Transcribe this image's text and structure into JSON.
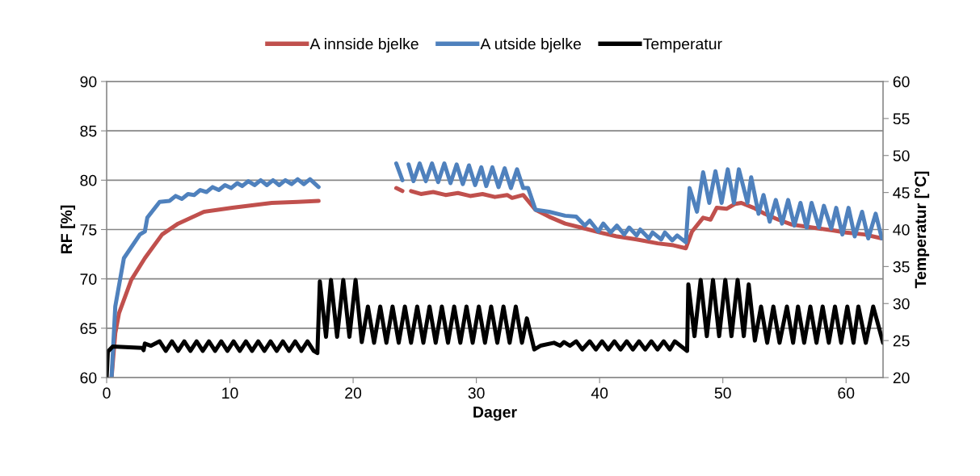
{
  "chart_data": {
    "type": "line",
    "xlabel": "Dager",
    "ylabel": "RF [%]",
    "y2label": "Temperatur [°C]",
    "xlim": [
      0,
      63
    ],
    "xticks": [
      0,
      10,
      20,
      30,
      40,
      50,
      60
    ],
    "ylim": [
      60,
      90
    ],
    "yticks": [
      60,
      65,
      70,
      75,
      80,
      85,
      90
    ],
    "y2lim": [
      20,
      60
    ],
    "y2ticks": [
      20,
      25,
      30,
      35,
      40,
      45,
      50,
      55,
      60
    ],
    "grid": "y",
    "legend": "top",
    "marker": "none",
    "line_style": "solid",
    "series": [
      {
        "name": "A innside bjelke",
        "color": "#c0504d",
        "x": [
          0.4,
          0.7,
          1.0,
          2.0,
          3.1,
          4.5,
          5.8,
          7.9,
          10.2,
          13.4,
          15.5,
          17.2,
          20.0,
          23.5,
          24.0,
          24.4,
          24.7,
          25.5,
          26.5,
          27.5,
          28.5,
          29.5,
          30.5,
          31.5,
          32.5,
          32.9,
          33.8,
          34.8,
          35.9,
          37.2,
          38.8,
          40.0,
          41.4,
          43.0,
          44.7,
          46.0,
          47.0,
          47.5,
          48.4,
          49.0,
          49.5,
          50.3,
          51.0,
          51.5,
          52.5,
          53.4,
          54.5,
          55.6,
          56.7,
          57.8,
          59.0,
          60.0,
          61.5,
          62.9
        ],
        "values": [
          60,
          64.5,
          66.5,
          69.9,
          72.1,
          74.5,
          75.6,
          76.8,
          77.2,
          77.7,
          77.8,
          77.9,
          null,
          79.2,
          78.9,
          null,
          78.9,
          78.6,
          78.8,
          78.5,
          78.7,
          78.4,
          78.6,
          78.3,
          78.5,
          78.2,
          78.5,
          77.0,
          76.3,
          75.6,
          75.1,
          74.7,
          74.3,
          74.0,
          73.6,
          73.4,
          73.1,
          74.8,
          76.2,
          76.0,
          77.2,
          77.1,
          77.6,
          77.7,
          77.2,
          76.6,
          76.0,
          75.5,
          75.3,
          75.1,
          74.9,
          74.7,
          74.5,
          74.1
        ]
      },
      {
        "name": "A utside bjelke",
        "color": "#4f81bd",
        "x": [
          0.4,
          0.7,
          1.4,
          2.7,
          3.1,
          3.3,
          3.8,
          4.3,
          5.1,
          5.6,
          6.1,
          6.6,
          7.1,
          7.6,
          8.1,
          8.6,
          9.1,
          9.6,
          10.1,
          10.6,
          11.0,
          11.5,
          12.0,
          12.5,
          13.0,
          13.5,
          14.0,
          14.5,
          15.0,
          15.5,
          16.0,
          16.5,
          17.2,
          20.0,
          23.5,
          24.0,
          24.2,
          24.5,
          24.9,
          25.4,
          25.9,
          26.4,
          26.9,
          27.4,
          27.9,
          28.4,
          28.9,
          29.4,
          29.9,
          30.4,
          30.8,
          31.3,
          31.8,
          32.3,
          32.8,
          33.3,
          33.8,
          34.2,
          34.8,
          35.9,
          37.2,
          38.1,
          38.8,
          39.2,
          39.9,
          40.3,
          40.9,
          41.4,
          42.0,
          42.4,
          43.0,
          43.3,
          44.0,
          44.3,
          45.0,
          45.3,
          45.9,
          46.3,
          47.0,
          47.3,
          47.9,
          48.4,
          48.9,
          49.4,
          49.9,
          50.4,
          50.9,
          51.3,
          52.0,
          52.3,
          52.9,
          53.3,
          53.8,
          54.3,
          54.8,
          55.3,
          55.8,
          56.3,
          56.8,
          57.2,
          57.8,
          58.2,
          58.8,
          59.2,
          59.7,
          60.2,
          60.7,
          61.3,
          61.8,
          62.4,
          62.9
        ],
        "values": [
          60,
          67.2,
          72.1,
          74.5,
          74.8,
          76.2,
          77.0,
          77.8,
          77.9,
          78.4,
          78.1,
          78.6,
          78.5,
          79.0,
          78.8,
          79.3,
          79.0,
          79.5,
          79.2,
          79.7,
          79.4,
          79.9,
          79.5,
          80.0,
          79.5,
          80.0,
          79.5,
          80.0,
          79.6,
          80.1,
          79.6,
          80.1,
          79.3,
          null,
          81.7,
          80.0,
          null,
          81.6,
          79.9,
          81.7,
          79.9,
          81.7,
          79.8,
          81.7,
          79.7,
          81.6,
          79.6,
          81.5,
          79.5,
          81.3,
          79.4,
          81.3,
          79.3,
          81.2,
          79.2,
          81.1,
          79.2,
          79.2,
          77.0,
          76.8,
          76.4,
          76.3,
          75.4,
          75.9,
          74.8,
          75.6,
          74.7,
          75.4,
          74.5,
          75.2,
          74.4,
          75.0,
          74.1,
          74.7,
          74.0,
          74.7,
          73.9,
          74.4,
          73.7,
          79.2,
          76.8,
          80.8,
          77.7,
          80.9,
          77.7,
          81.1,
          77.7,
          81.1,
          77.7,
          80.3,
          76.6,
          78.5,
          75.8,
          78.0,
          75.6,
          78.0,
          75.4,
          77.7,
          75.2,
          77.7,
          75.2,
          77.4,
          75.1,
          77.2,
          74.5,
          77.2,
          74.3,
          76.8,
          74.1,
          76.6,
          74.1
        ]
      },
      {
        "name": "Temperatur",
        "color": "#000000",
        "axis": "y2",
        "x": [
          0,
          0.1,
          0.5,
          2.9,
          3.0,
          3.1,
          3.6,
          4.3,
          4.8,
          5.3,
          5.8,
          6.3,
          6.8,
          7.3,
          7.8,
          8.3,
          8.8,
          9.3,
          9.8,
          10.3,
          10.8,
          11.3,
          11.8,
          12.3,
          12.8,
          13.3,
          13.8,
          14.3,
          14.8,
          15.3,
          15.8,
          16.3,
          16.8,
          17.1,
          17.3,
          17.8,
          18.2,
          18.7,
          19.2,
          19.7,
          20.2,
          20.7,
          21.2,
          21.7,
          22.2,
          22.7,
          23.2,
          23.7,
          24.2,
          24.7,
          25.2,
          25.7,
          26.2,
          26.7,
          27.2,
          27.7,
          28.2,
          28.7,
          29.2,
          29.7,
          30.2,
          30.7,
          31.2,
          31.7,
          32.2,
          32.7,
          33.2,
          33.7,
          34.1,
          34.7,
          35.2,
          36.3,
          36.8,
          37.1,
          37.6,
          38.1,
          38.6,
          39.2,
          39.7,
          40.2,
          40.7,
          41.2,
          41.7,
          42.2,
          42.7,
          43.2,
          43.7,
          44.2,
          44.7,
          45.2,
          45.7,
          46.1,
          47.1,
          47.2,
          47.7,
          48.2,
          48.7,
          49.2,
          49.7,
          50.2,
          50.7,
          51.2,
          51.7,
          52.1,
          52.6,
          53.1,
          53.6,
          54.1,
          54.6,
          55.2,
          55.7,
          56.1,
          56.6,
          57.1,
          57.6,
          58.1,
          58.6,
          59.1,
          59.6,
          60.1,
          60.6,
          61.0,
          61.6,
          62.2,
          63.0
        ],
        "values": [
          20,
          23.5,
          24.2,
          24.0,
          23.7,
          24.6,
          24.3,
          24.9,
          23.6,
          24.9,
          23.6,
          24.9,
          23.6,
          24.9,
          23.6,
          24.9,
          23.6,
          24.9,
          23.6,
          24.9,
          23.6,
          24.9,
          23.6,
          24.9,
          23.6,
          24.9,
          23.6,
          24.9,
          23.6,
          24.9,
          23.6,
          24.9,
          23.6,
          23.3,
          33.0,
          25.5,
          33.2,
          25.5,
          33.2,
          25.5,
          33.2,
          24.8,
          29.6,
          24.7,
          29.6,
          24.7,
          29.6,
          24.7,
          29.6,
          24.7,
          29.6,
          24.7,
          29.6,
          24.7,
          29.6,
          24.7,
          29.6,
          24.7,
          29.6,
          24.7,
          29.6,
          24.7,
          29.6,
          24.7,
          29.6,
          24.7,
          29.6,
          24.7,
          28.0,
          23.8,
          24.3,
          24.7,
          24.3,
          24.8,
          24.3,
          24.9,
          23.8,
          24.9,
          23.8,
          24.9,
          23.8,
          24.9,
          23.8,
          24.9,
          23.8,
          24.9,
          23.8,
          24.9,
          23.8,
          24.9,
          23.8,
          24.9,
          23.6,
          32.6,
          25.6,
          33.2,
          25.6,
          33.2,
          25.6,
          33.2,
          25.6,
          33.2,
          25.6,
          32.6,
          25.0,
          29.6,
          24.7,
          29.6,
          24.7,
          29.6,
          24.7,
          29.6,
          24.7,
          29.6,
          24.7,
          29.6,
          24.7,
          29.6,
          24.7,
          29.6,
          24.7,
          29.6,
          24.7,
          29.6,
          24.7
        ]
      }
    ]
  }
}
